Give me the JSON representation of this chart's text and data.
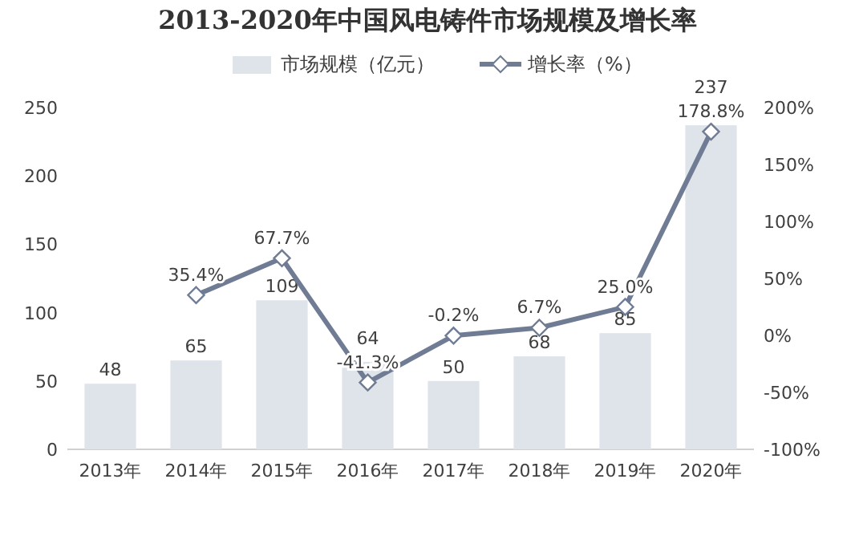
{
  "chart_data": {
    "type": "bar",
    "title": "2013-2020年中国风电铸件市场规模及增长率",
    "categories": [
      "2013年",
      "2014年",
      "2015年",
      "2016年",
      "2017年",
      "2018年",
      "2019年",
      "2020年"
    ],
    "series": [
      {
        "name": "市场规模（亿元）",
        "type": "bar",
        "color": "#dfe3ea",
        "values": [
          48,
          65,
          109,
          64,
          50,
          68,
          85,
          237
        ],
        "data_labels": true
      },
      {
        "name": "增长率（%）",
        "type": "line",
        "axis": "y2",
        "color": "#6f7c94",
        "marker": "diamond",
        "values": [
          null,
          35.4,
          67.7,
          -41.3,
          -0.2,
          6.7,
          25.0,
          178.8
        ],
        "value_labels": [
          null,
          "35.4%",
          "67.7%",
          "-41.3%",
          "-0.2%",
          "6.7%",
          "25.0%",
          "178.8%"
        ]
      }
    ],
    "ylim": [
      0,
      250
    ],
    "yticks": [
      0,
      50,
      100,
      150,
      200,
      250
    ],
    "y2lim": [
      -100,
      200
    ],
    "y2ticks": [
      {
        "value": -100,
        "label": "-100%"
      },
      {
        "value": -50,
        "label": "-50%"
      },
      {
        "value": 0,
        "label": "0%"
      },
      {
        "value": 50,
        "label": "50%"
      },
      {
        "value": 100,
        "label": "100%"
      },
      {
        "value": 150,
        "label": "150%"
      },
      {
        "value": 200,
        "label": "200%"
      }
    ],
    "legend": "top"
  }
}
